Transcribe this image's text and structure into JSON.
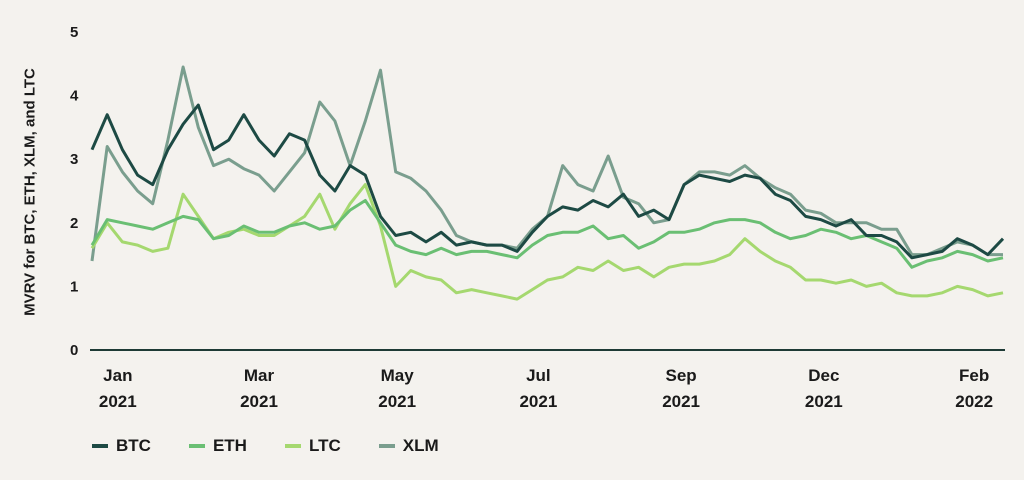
{
  "chart_data": {
    "type": "line",
    "title": "",
    "xlabel": "",
    "ylabel": "MVRV for BTC, ETH, XLM, and LTC",
    "ylim": [
      0,
      5
    ],
    "yticks": [
      "0",
      "1",
      "2",
      "3",
      "4",
      "5"
    ],
    "x_unit": "week index (approx. weekly samples, Jan 2021 to Feb 2022)",
    "xlim": [
      0,
      60
    ],
    "xticks": [
      {
        "at": 1.7,
        "line1": "Jan",
        "line2": "2021"
      },
      {
        "at": 11.0,
        "line1": "Mar",
        "line2": "2021"
      },
      {
        "at": 20.1,
        "line1": "May",
        "line2": "2021"
      },
      {
        "at": 29.4,
        "line1": "Jul",
        "line2": "2021"
      },
      {
        "at": 38.8,
        "line1": "Sep",
        "line2": "2021"
      },
      {
        "at": 48.2,
        "line1": "Dec",
        "line2": "2021"
      },
      {
        "at": 58.1,
        "line1": "Feb",
        "line2": "2022"
      }
    ],
    "grid": false,
    "legend_position": "bottom-left",
    "series": [
      {
        "name": "BTC",
        "color": "#1d4a44",
        "values": [
          3.15,
          3.7,
          3.15,
          2.75,
          2.6,
          3.15,
          3.55,
          3.85,
          3.15,
          3.3,
          3.7,
          3.3,
          3.05,
          3.4,
          3.3,
          2.75,
          2.5,
          2.9,
          2.75,
          2.1,
          1.8,
          1.85,
          1.7,
          1.85,
          1.65,
          1.7,
          1.65,
          1.65,
          1.55,
          1.85,
          2.1,
          2.25,
          2.2,
          2.35,
          2.25,
          2.45,
          2.1,
          2.2,
          2.05,
          2.6,
          2.75,
          2.7,
          2.65,
          2.75,
          2.7,
          2.45,
          2.35,
          2.1,
          2.05,
          1.95,
          2.05,
          1.8,
          1.8,
          1.7,
          1.45,
          1.5,
          1.55,
          1.75,
          1.65,
          1.5,
          1.75
        ]
      },
      {
        "name": "ETH",
        "color": "#6abf73",
        "values": [
          1.65,
          2.05,
          2.0,
          1.95,
          1.9,
          2.0,
          2.1,
          2.05,
          1.75,
          1.8,
          1.95,
          1.85,
          1.85,
          1.95,
          2.0,
          1.9,
          1.95,
          2.2,
          2.35,
          2.0,
          1.65,
          1.55,
          1.5,
          1.6,
          1.5,
          1.55,
          1.55,
          1.5,
          1.45,
          1.65,
          1.8,
          1.85,
          1.85,
          1.95,
          1.75,
          1.8,
          1.6,
          1.7,
          1.85,
          1.85,
          1.9,
          2.0,
          2.05,
          2.05,
          2.0,
          1.85,
          1.75,
          1.8,
          1.9,
          1.85,
          1.75,
          1.8,
          1.7,
          1.6,
          1.3,
          1.4,
          1.45,
          1.55,
          1.5,
          1.4,
          1.45
        ]
      },
      {
        "name": "LTC",
        "color": "#a5d86f",
        "values": [
          1.6,
          2.0,
          1.7,
          1.65,
          1.55,
          1.6,
          2.45,
          2.1,
          1.75,
          1.85,
          1.9,
          1.8,
          1.8,
          1.95,
          2.1,
          2.45,
          1.9,
          2.3,
          2.6,
          1.95,
          1.0,
          1.25,
          1.15,
          1.1,
          0.9,
          0.95,
          0.9,
          0.85,
          0.8,
          0.95,
          1.1,
          1.15,
          1.3,
          1.25,
          1.4,
          1.25,
          1.3,
          1.15,
          1.3,
          1.35,
          1.35,
          1.4,
          1.5,
          1.75,
          1.55,
          1.4,
          1.3,
          1.1,
          1.1,
          1.05,
          1.1,
          1.0,
          1.05,
          0.9,
          0.85,
          0.85,
          0.9,
          1.0,
          0.95,
          0.85,
          0.9
        ]
      },
      {
        "name": "XLM",
        "color": "#7a9e8e",
        "values": [
          1.4,
          3.2,
          2.8,
          2.5,
          2.3,
          3.3,
          4.45,
          3.5,
          2.9,
          3.0,
          2.85,
          2.75,
          2.5,
          2.8,
          3.1,
          3.9,
          3.6,
          2.9,
          3.6,
          4.4,
          2.8,
          2.7,
          2.5,
          2.2,
          1.8,
          1.7,
          1.65,
          1.65,
          1.6,
          1.9,
          2.1,
          2.9,
          2.6,
          2.5,
          3.05,
          2.4,
          2.3,
          2.0,
          2.05,
          2.6,
          2.8,
          2.8,
          2.75,
          2.9,
          2.7,
          2.55,
          2.45,
          2.2,
          2.15,
          2.0,
          2.0,
          2.0,
          1.9,
          1.9,
          1.5,
          1.5,
          1.6,
          1.7,
          1.65,
          1.5,
          1.5
        ]
      }
    ],
    "draw_order": [
      "XLM",
      "LTC",
      "ETH",
      "BTC"
    ]
  }
}
